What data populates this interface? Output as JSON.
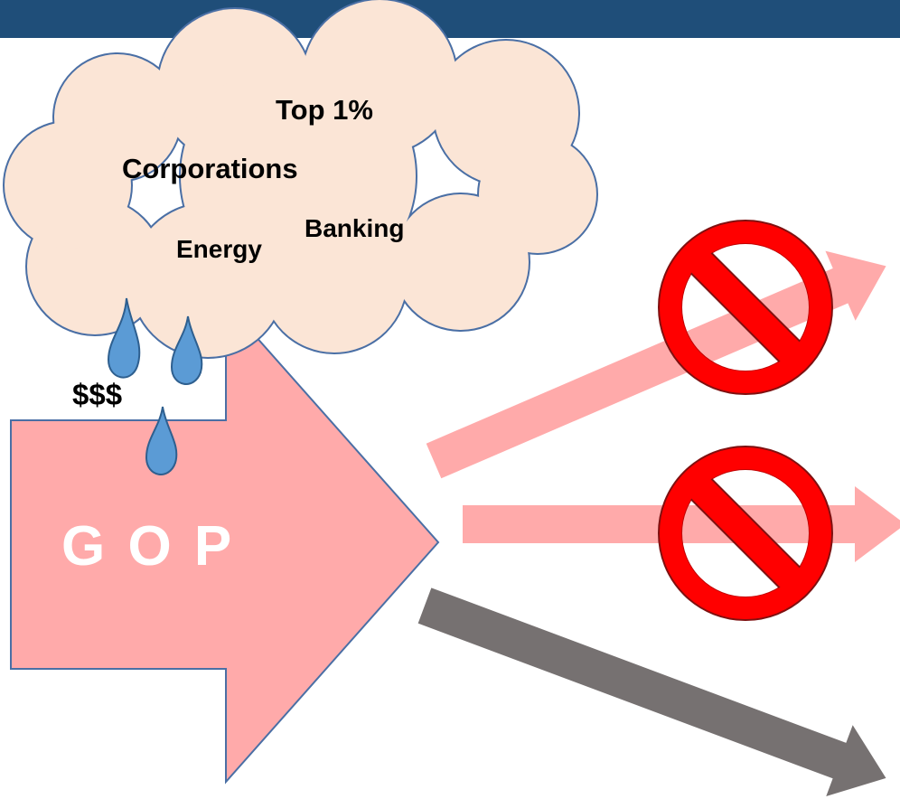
{
  "cloud": {
    "items": [
      "Top 1%",
      "Corporations",
      "Energy",
      "Banking"
    ]
  },
  "money": "$$$",
  "arrow": {
    "label": "G O P"
  }
}
